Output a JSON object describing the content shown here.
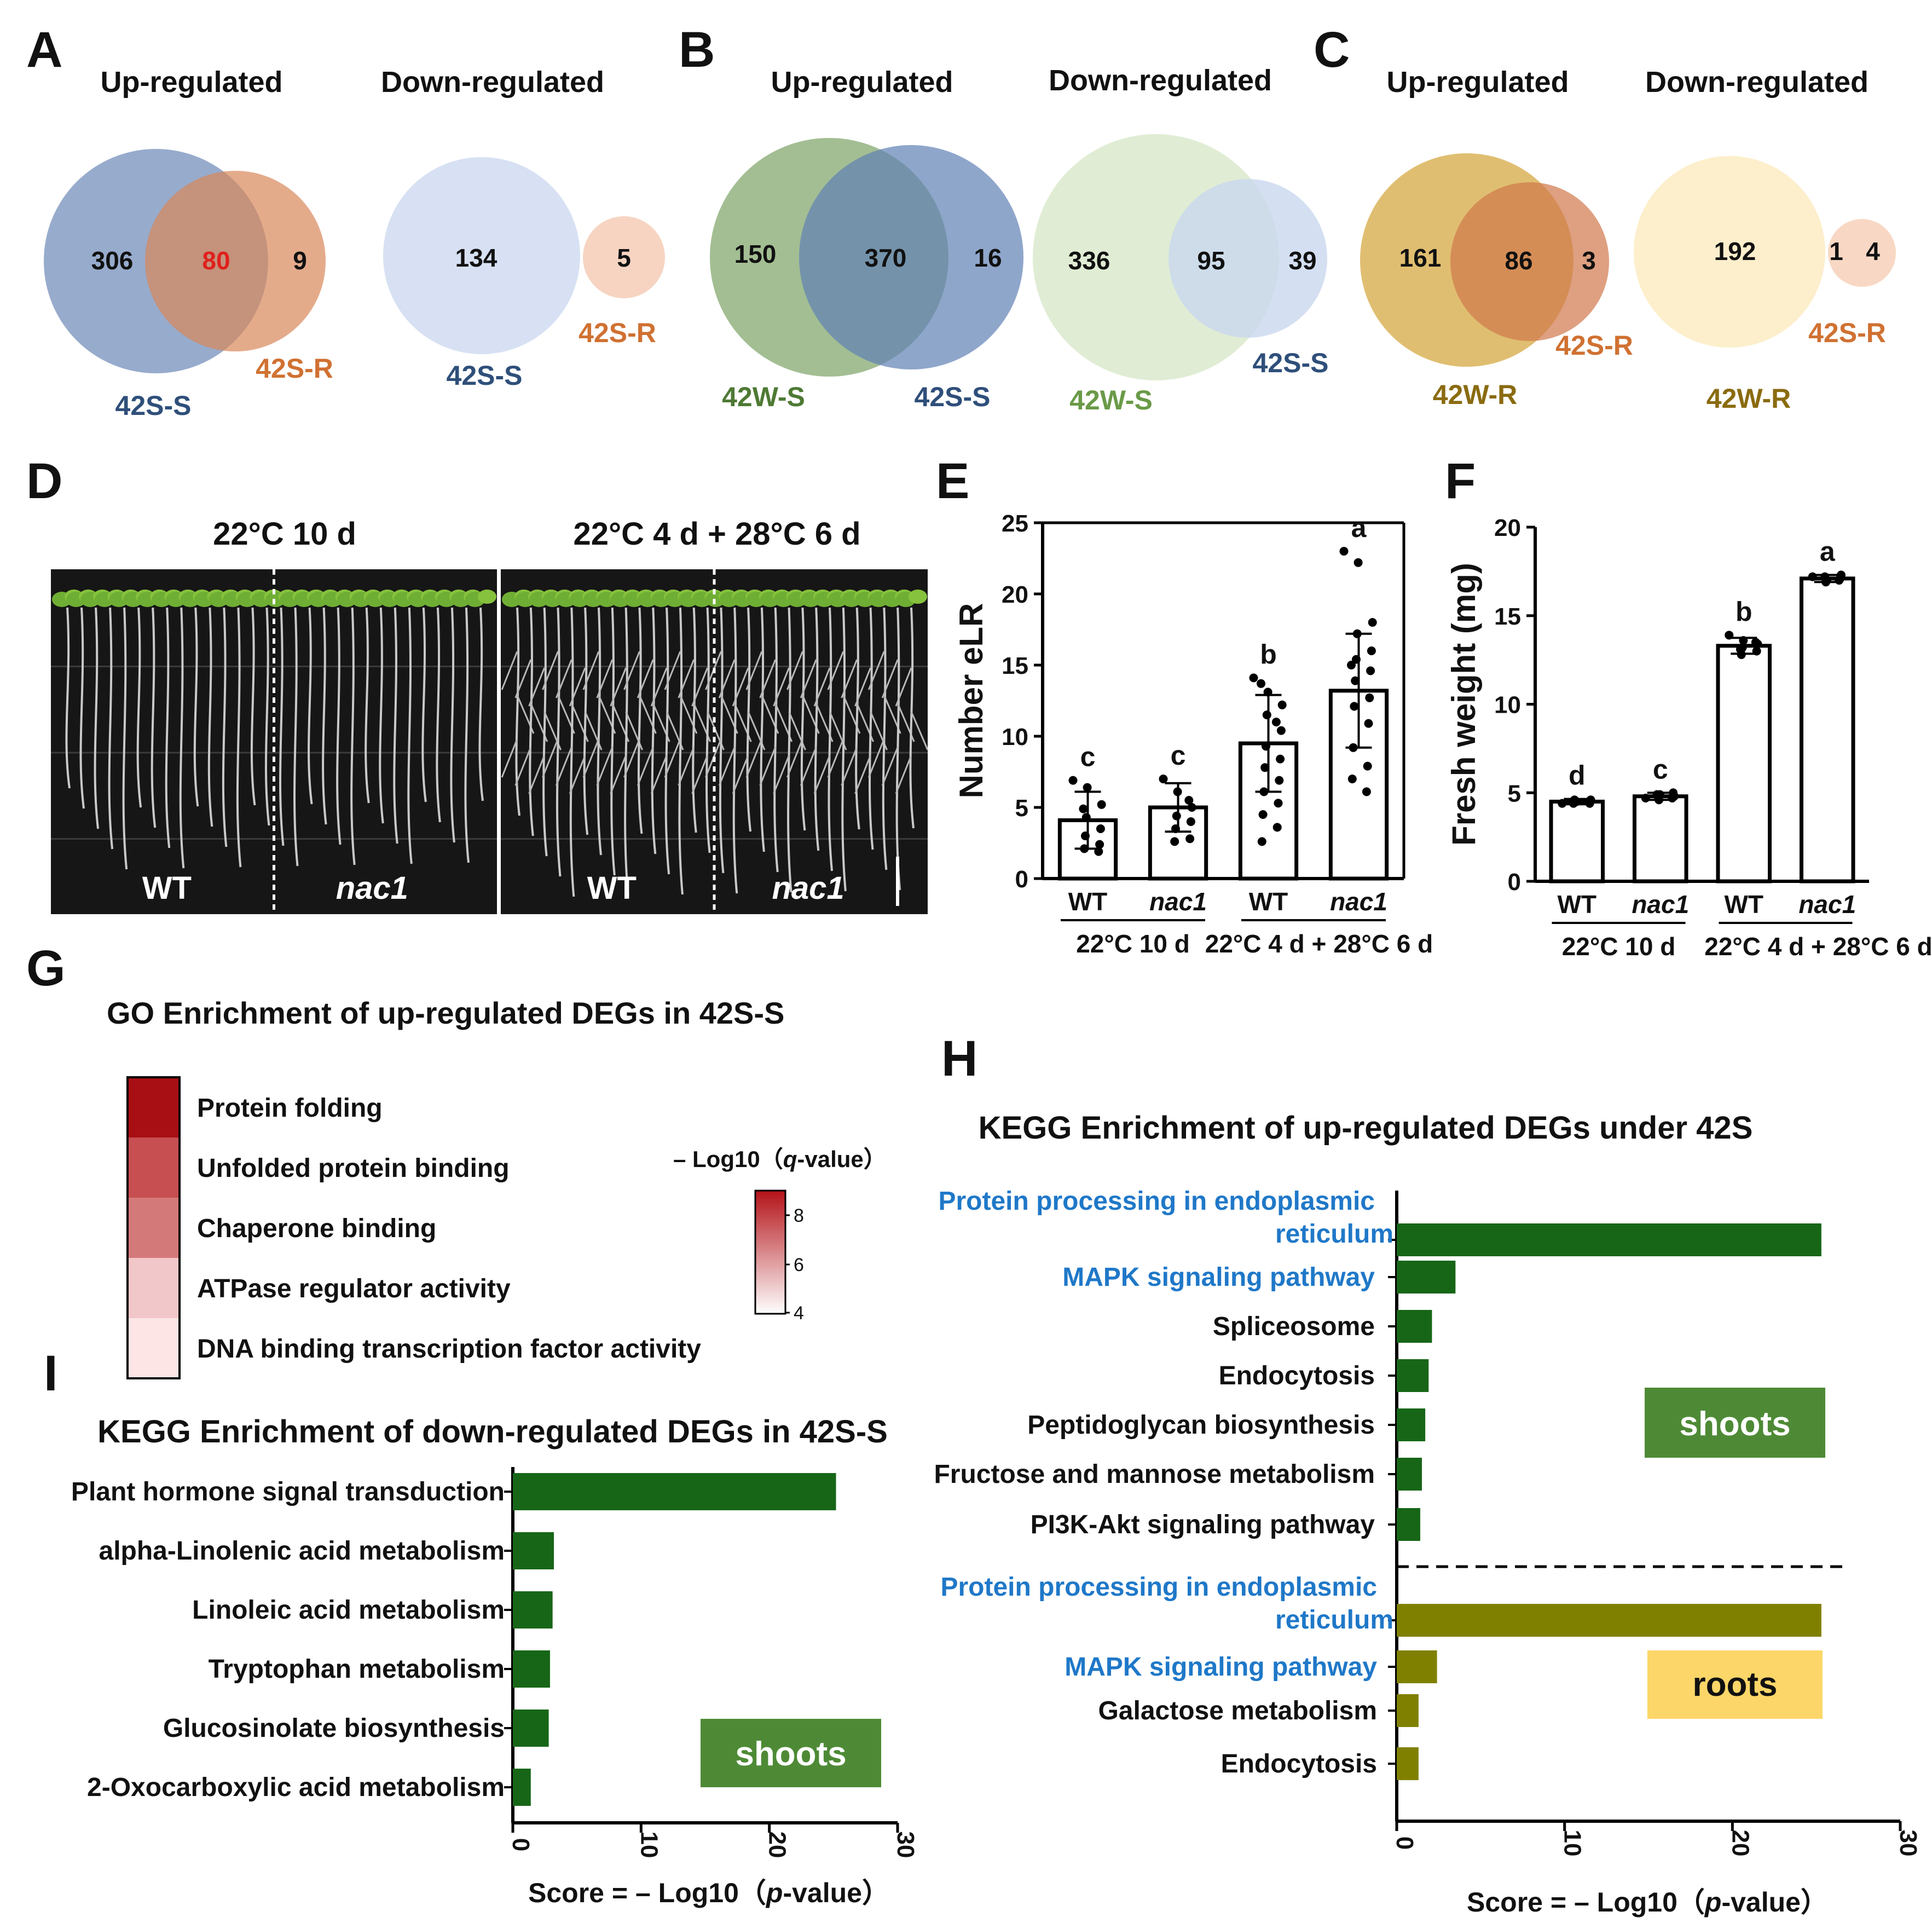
{
  "panel_letters": [
    "A",
    "B",
    "C",
    "D",
    "E",
    "F",
    "G",
    "H",
    "I"
  ],
  "venn": {
    "A": {
      "up_title": "Up-regulated",
      "down_title": "Down-regulated",
      "up": {
        "left_label": "42S-S",
        "right_label": "42S-R",
        "only_left": "306",
        "overlap": "80",
        "only_right": "9"
      },
      "down": {
        "left_label": "42S-S",
        "right_label": "42S-R",
        "only_left": "134",
        "only_right": "5"
      }
    },
    "B": {
      "up_title": "Up-regulated",
      "down_title": "Down-regulated",
      "up": {
        "left_label": "42W-S",
        "right_label": "42S-S",
        "only_left": "150",
        "overlap": "370",
        "only_right": "16"
      },
      "down": {
        "left_label": "42W-S",
        "right_label": "42S-S",
        "only_left": "336",
        "overlap": "95",
        "only_right": "39"
      }
    },
    "C": {
      "up_title": "Up-regulated",
      "down_title": "Down-regulated",
      "up": {
        "left_label": "42W-R",
        "right_label": "42S-R",
        "only_left": "161",
        "overlap": "86",
        "only_right": "3"
      },
      "down": {
        "left_label": "42W-R",
        "right_label": "42S-R",
        "only_left": "192",
        "overlap": "1",
        "only_right": "4"
      }
    },
    "colors": {
      "S_blue": "#6f8bb8",
      "R_orange": "#d9875a",
      "W_green": "#7fa56a",
      "W_R_gold": "#d4a53a",
      "overlap_red": "#e0201c"
    }
  },
  "panel_D": {
    "titles": [
      "22°C 10 d",
      "22°C 4 d + 28°C 6 d"
    ],
    "photo1_labels": [
      "WT",
      "nac1"
    ],
    "photo2_labels": [
      "WT",
      "nac1"
    ]
  },
  "panel_E": {
    "ylabel": "Number eLR",
    "x_labels": [
      "WT",
      "nac1",
      "WT",
      "nac1"
    ],
    "group_labels": [
      "22°C 10 d",
      "22°C 4 d + 28°C 6 d"
    ],
    "chart_data": {
      "type": "bar",
      "categories": [
        "WT",
        "nac1",
        "WT",
        "nac1"
      ],
      "values": [
        4.1,
        5.0,
        9.5,
        13.2
      ],
      "errors": [
        2.0,
        1.7,
        3.4,
        4.0
      ],
      "letters": [
        "c",
        "c",
        "b",
        "a"
      ],
      "ylim": [
        0,
        25
      ],
      "yticks": [
        "0",
        "5",
        "10",
        "15",
        "20",
        "25"
      ],
      "points": [
        [
          6.9,
          6.4,
          5.2,
          4.3,
          3.5,
          3.0,
          2.4,
          2.1,
          1.9,
          4.9
        ],
        [
          7.0,
          6.1,
          5.0,
          4.4,
          4.0,
          3.5,
          2.8,
          2.6,
          5.5
        ],
        [
          14.1,
          13.1,
          12.2,
          11.5,
          10.4,
          9.3,
          8.4,
          7.8,
          6.9,
          6.1,
          5.3,
          4.5,
          3.6,
          2.6,
          11.0,
          13.7
        ],
        [
          23.0,
          22.2,
          18.0,
          17.2,
          16.0,
          15.4,
          14.6,
          13.9,
          12.7,
          12.1,
          10.9,
          9.2,
          7.9,
          7.0,
          6.1,
          15.0
        ]
      ]
    }
  },
  "panel_F": {
    "ylabel": "Fresh weight (mg)",
    "x_labels": [
      "WT",
      "nac1",
      "WT",
      "nac1"
    ],
    "group_labels": [
      "22°C 10 d",
      "22°C 4 d + 28°C 6 d"
    ],
    "chart_data": {
      "type": "bar",
      "categories": [
        "WT",
        "nac1",
        "WT",
        "nac1"
      ],
      "values": [
        4.5,
        4.8,
        13.3,
        17.1
      ],
      "errors": [
        0.15,
        0.2,
        0.45,
        0.2
      ],
      "letters": [
        "d",
        "c",
        "b",
        "a"
      ],
      "ylim": [
        0,
        20
      ],
      "yticks": [
        "0",
        "5",
        "10",
        "15",
        "20"
      ],
      "points": [
        [
          4.4,
          4.5,
          4.6,
          4.5,
          4.4,
          4.6,
          4.5,
          4.4
        ],
        [
          4.7,
          4.9,
          4.8,
          4.6,
          5.0,
          4.8,
          4.7,
          4.9
        ],
        [
          13.9,
          13.6,
          13.4,
          13.2,
          13.0,
          12.8,
          13.5,
          13.1
        ],
        [
          17.2,
          17.0,
          17.3,
          16.9,
          17.1,
          17.2,
          17.0
        ]
      ]
    }
  },
  "panel_G": {
    "title": "GO Enrichment of  up-regulated DEGs in 42S-S",
    "terms": [
      "Protein folding",
      "Unfolded protein binding",
      "Chaperone binding",
      "ATPase regulator activity",
      "DNA binding transcription factor activity"
    ],
    "cell_colors": [
      "#a80f14",
      "#c74f51",
      "#d4797a",
      "#f2c7c9",
      "#fde5e6"
    ],
    "legend_title_prefix": "– Log10（",
    "legend_title_italic": "q",
    "legend_title_suffix": "-value）",
    "legend_ticks": [
      "8",
      "6",
      "4"
    ],
    "legend_gradient": [
      "#b31218",
      "#ffffff"
    ]
  },
  "panel_H": {
    "title": "KEGG Enrichment of up-regulated  DEGs under 42S",
    "xlabel_prefix": "Score = – Log10（",
    "xlabel_italic": "p",
    "xlabel_suffix": "-value）",
    "shoots_label": "shoots",
    "roots_label": "roots",
    "xticks": [
      "0",
      "10",
      "20",
      "30"
    ],
    "chart_data": {
      "type": "bar",
      "orientation": "horizontal",
      "xlim": [
        0,
        30
      ],
      "series": [
        {
          "name": "shoots",
          "color": "#176617",
          "categories": [
            "Protein processing in endoplasmic reticulum",
            "MAPK signaling pathway",
            "Spliceosome",
            "Endocytosis",
            "Peptidoglycan biosynthesis",
            "Fructose and mannose metabolism",
            "PI3K-Akt signaling pathway"
          ],
          "values": [
            25.3,
            3.5,
            2.1,
            1.9,
            1.7,
            1.5,
            1.4
          ]
        },
        {
          "name": "roots",
          "color": "#808000",
          "categories": [
            "Protein processing in endoplasmic reticulum",
            "MAPK signaling pathway",
            "Galactose metabolism",
            "Endocytosis"
          ],
          "values": [
            25.3,
            2.4,
            1.3,
            1.3
          ]
        }
      ]
    },
    "label_lines": {
      "shoots": [
        [
          "Protein processing in endoplasmic",
          "reticulum"
        ],
        [
          "MAPK signaling pathway"
        ],
        [
          "Spliceosome"
        ],
        [
          "Endocytosis"
        ],
        [
          "Peptidoglycan biosynthesis"
        ],
        [
          "Fructose and mannose metabolism"
        ],
        [
          "PI3K-Akt signaling pathway"
        ]
      ],
      "roots": [
        [
          "Protein processing in endoplasmic",
          "reticulum"
        ],
        [
          "MAPK signaling pathway"
        ],
        [
          "Galactose metabolism"
        ],
        [
          "Endocytosis"
        ]
      ]
    },
    "highlight_color": "#1f78c8"
  },
  "panel_I": {
    "title": "KEGG Enrichment of down-regulated  DEGs in 42S-S",
    "xlabel_prefix": "Score = – Log10（",
    "xlabel_italic": "p",
    "xlabel_suffix": "-value）",
    "shoots_label": "shoots",
    "xticks": [
      "0",
      "10",
      "20",
      "30"
    ],
    "chart_data": {
      "type": "bar",
      "orientation": "horizontal",
      "xlim": [
        0,
        30
      ],
      "categories": [
        "Plant hormone signal transduction",
        "alpha-Linolenic acid metabolism",
        "Linoleic acid metabolism",
        "Tryptophan metabolism",
        "Glucosinolate biosynthesis",
        "2-Oxocarboxylic acid metabolism"
      ],
      "values": [
        25.2,
        3.2,
        3.1,
        2.9,
        2.8,
        1.4
      ],
      "color": "#176617"
    }
  }
}
